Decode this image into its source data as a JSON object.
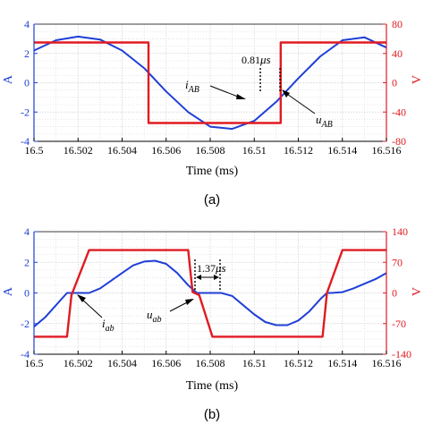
{
  "colors": {
    "current": "#1f3fd6",
    "voltage": "#e01b22",
    "grid": "#d9d9d9",
    "axis": "#000000"
  },
  "chart_data": [
    {
      "type": "line",
      "caption": "(a)",
      "xlabel": "Time (ms)",
      "ylabel_left": "A",
      "ylabel_right": "V",
      "xlim": [
        16.5,
        16.516
      ],
      "ylim_left": [
        -4,
        4
      ],
      "ylim_right": [
        -80,
        80
      ],
      "grid": true,
      "x_ticks": [
        "16.5",
        "16.502",
        "16.504",
        "16.506",
        "16.508",
        "16.51",
        "16.512",
        "16.514",
        "16.516"
      ],
      "y_ticks_left": [
        "4",
        "2",
        "0",
        "-2",
        "-4"
      ],
      "y_ticks_right": [
        "80",
        "40",
        "0",
        "-40",
        "-80"
      ],
      "series": [
        {
          "axis": "left",
          "x": [
            16.5,
            16.501,
            16.502,
            16.503,
            16.504,
            16.505,
            16.506,
            16.507,
            16.508,
            16.509,
            16.51,
            16.511,
            16.512,
            16.513,
            16.514,
            16.515,
            16.516
          ],
          "y": [
            2.2,
            2.9,
            3.15,
            2.95,
            2.2,
            1.0,
            -0.6,
            -2.0,
            -3.0,
            -3.15,
            -2.6,
            -1.3,
            0.3,
            1.8,
            2.9,
            3.1,
            2.4
          ]
        },
        {
          "axis": "right",
          "x": [
            16.5,
            16.5052,
            16.5052,
            16.5112,
            16.5112,
            16.516
          ],
          "y": [
            55,
            55,
            -55,
            -55,
            55,
            55
          ]
        }
      ],
      "annotations": {
        "i_main": "i",
        "i_sub": "AB",
        "u_main": "u",
        "u_sub": "AB",
        "delay_num": "0.81",
        "delay_unit": "μs"
      }
    },
    {
      "type": "line",
      "caption": "(b)",
      "xlabel": "Time (ms)",
      "ylabel_left": "A",
      "ylabel_right": "V",
      "xlim": [
        16.5,
        16.516
      ],
      "ylim_left": [
        -4,
        4
      ],
      "ylim_right": [
        -140,
        140
      ],
      "grid": true,
      "x_ticks": [
        "16.5",
        "16.502",
        "16.504",
        "16.506",
        "16.508",
        "16.51",
        "16.512",
        "16.514",
        "16.516"
      ],
      "y_ticks_left": [
        "4",
        "2",
        "0",
        "-2",
        "-4"
      ],
      "y_ticks_right": [
        "140",
        "70",
        "0",
        "-70",
        "-140"
      ],
      "series": [
        {
          "axis": "left",
          "x": [
            16.5,
            16.5005,
            16.501,
            16.5015,
            16.502,
            16.5025,
            16.503,
            16.5035,
            16.504,
            16.5045,
            16.505,
            16.5055,
            16.506,
            16.5065,
            16.507,
            16.5074,
            16.5075,
            16.508,
            16.5085,
            16.509,
            16.5095,
            16.51,
            16.5105,
            16.511,
            16.5115,
            16.512,
            16.5125,
            16.513,
            16.5133,
            16.5135,
            16.514,
            16.5145,
            16.515,
            16.5155,
            16.516
          ],
          "y": [
            -2.2,
            -1.6,
            -0.8,
            0.0,
            0.0,
            0.0,
            0.3,
            0.8,
            1.3,
            1.8,
            2.05,
            2.1,
            1.9,
            1.3,
            0.5,
            0.0,
            0.0,
            0.0,
            0.0,
            -0.2,
            -0.8,
            -1.4,
            -1.9,
            -2.1,
            -2.1,
            -1.8,
            -1.2,
            -0.4,
            0.0,
            0.0,
            0.05,
            0.3,
            0.6,
            0.9,
            1.3
          ]
        },
        {
          "axis": "right",
          "x": [
            16.5,
            16.5015,
            16.5017,
            16.5025,
            16.507,
            16.5072,
            16.5075,
            16.5081,
            16.5131,
            16.5133,
            16.514,
            16.516
          ],
          "y": [
            -100,
            -100,
            -5,
            98,
            98,
            2,
            -5,
            -100,
            -100,
            0,
            98,
            98
          ]
        }
      ],
      "annotations": {
        "i_main": "i",
        "i_sub": "ab",
        "u_main": "u",
        "u_sub": "ab",
        "delay_num": "1.37",
        "delay_unit": "μs"
      }
    }
  ]
}
